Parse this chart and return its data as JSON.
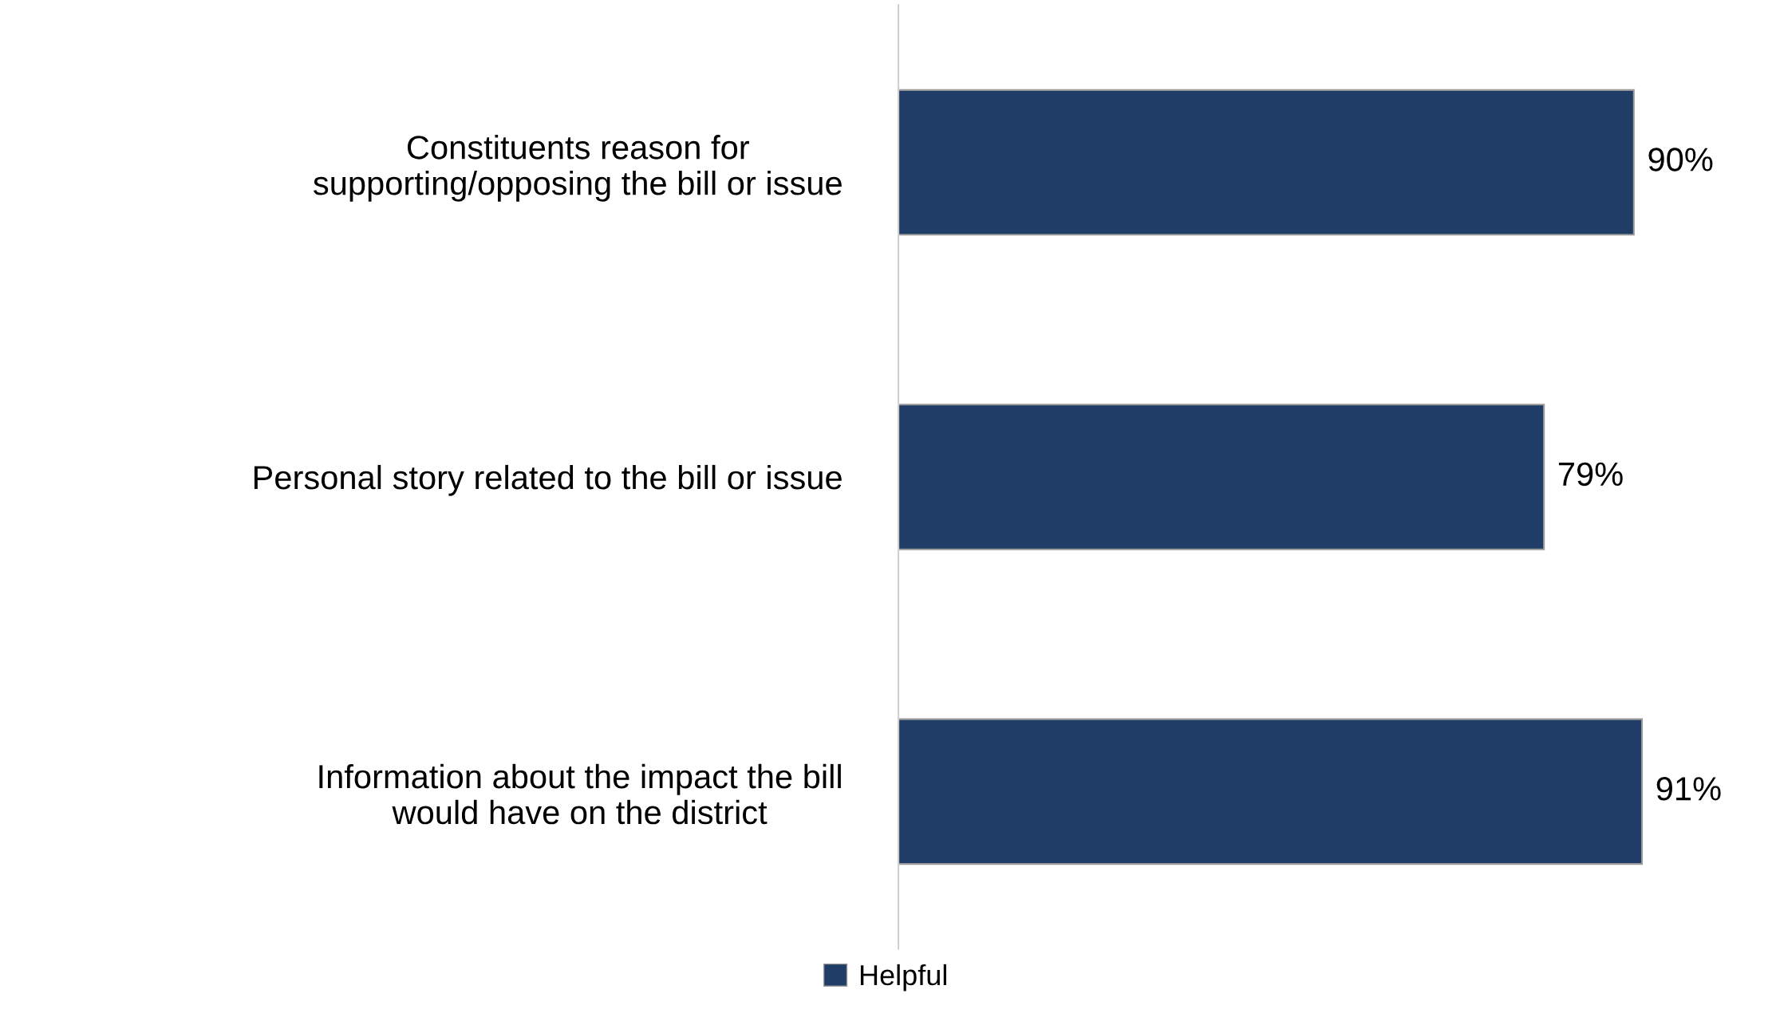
{
  "chart_data": {
    "type": "bar",
    "orientation": "horizontal",
    "categories": [
      "Constituents reason for supporting/opposing the bill or issue",
      "Personal story related to the bill or issue",
      "Information about the impact the bill would have on the district"
    ],
    "series": [
      {
        "name": "Helpful",
        "color": "#1f3d66",
        "values": [
          90,
          79,
          91
        ],
        "value_labels": [
          "90%",
          "79%",
          "91%"
        ]
      }
    ],
    "legend": "bottom",
    "grid": false
  }
}
